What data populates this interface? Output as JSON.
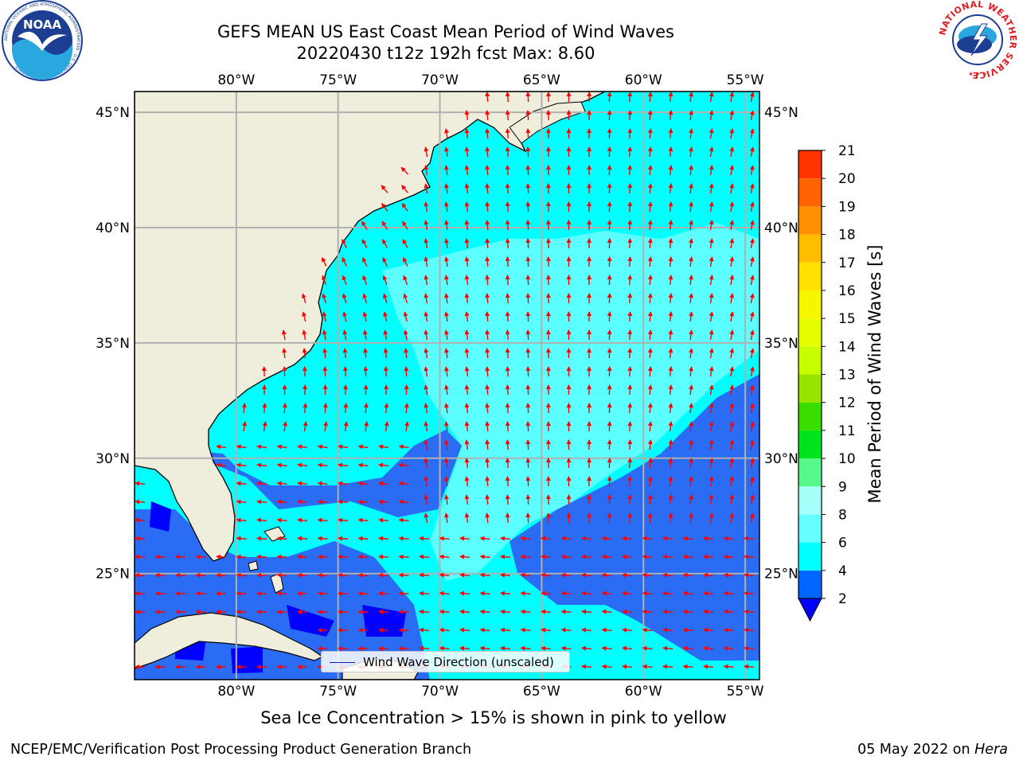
{
  "header": {
    "title_line1": "GEFS MEAN US East Coast Mean Period of Wind Waves",
    "title_line2": "20220430 t12z 192h fcst   Max: 8.60"
  },
  "logos": {
    "noaa_text": "NOAA",
    "noaa_ring_text": "NATIONAL OCEANIC AND ATMOSPHERIC ADMINISTRATION · U.S. DEPARTMENT OF COMMERCE",
    "nws_ring_text": "NATIONAL WEATHER SERVICE"
  },
  "map": {
    "lon_range": [
      -85,
      -54.3
    ],
    "lat_range": [
      20.4,
      45.9
    ],
    "lon_ticks": [
      {
        "value": -80,
        "label": "80°W"
      },
      {
        "value": -75,
        "label": "75°W"
      },
      {
        "value": -70,
        "label": "70°W"
      },
      {
        "value": -65,
        "label": "65°W"
      },
      {
        "value": -60,
        "label": "60°W"
      },
      {
        "value": -55,
        "label": "55°W"
      }
    ],
    "lat_ticks": [
      {
        "value": 45,
        "label": "45°N"
      },
      {
        "value": 40,
        "label": "40°N"
      },
      {
        "value": 35,
        "label": "35°N"
      },
      {
        "value": 30,
        "label": "30°N"
      },
      {
        "value": 25,
        "label": "25°N"
      }
    ],
    "grid": true,
    "land_color": "#efeedc",
    "arrow_color": "#ff0000",
    "legend_label": "Wind Wave Direction (unscaled)"
  },
  "colorbar": {
    "label": "Mean Period of Wind Waves [s]",
    "ticks": [
      "2",
      "4",
      "6",
      "8",
      "9",
      "10",
      "11",
      "12",
      "13",
      "14",
      "15",
      "16",
      "17",
      "18",
      "19",
      "20",
      "21"
    ],
    "colors": [
      "#0066ff",
      "#00ffff",
      "#66ffff",
      "#a6fff8",
      "#56f98a",
      "#00e31d",
      "#39dd00",
      "#97e300",
      "#c8ff00",
      "#e6ff00",
      "#f6f600",
      "#ffe000",
      "#ffbd00",
      "#ff9000",
      "#ff6200",
      "#ff3400",
      "#ff0000"
    ],
    "under_color": "#0000ff"
  },
  "caption": "Sea Ice Concentration > 15% is shown in pink to yellow",
  "footer": {
    "left": "NCEP/EMC/Verification Post Processing Product Generation Branch",
    "right_prefix": "05 May 2022 on ",
    "right_host": "Hera"
  }
}
